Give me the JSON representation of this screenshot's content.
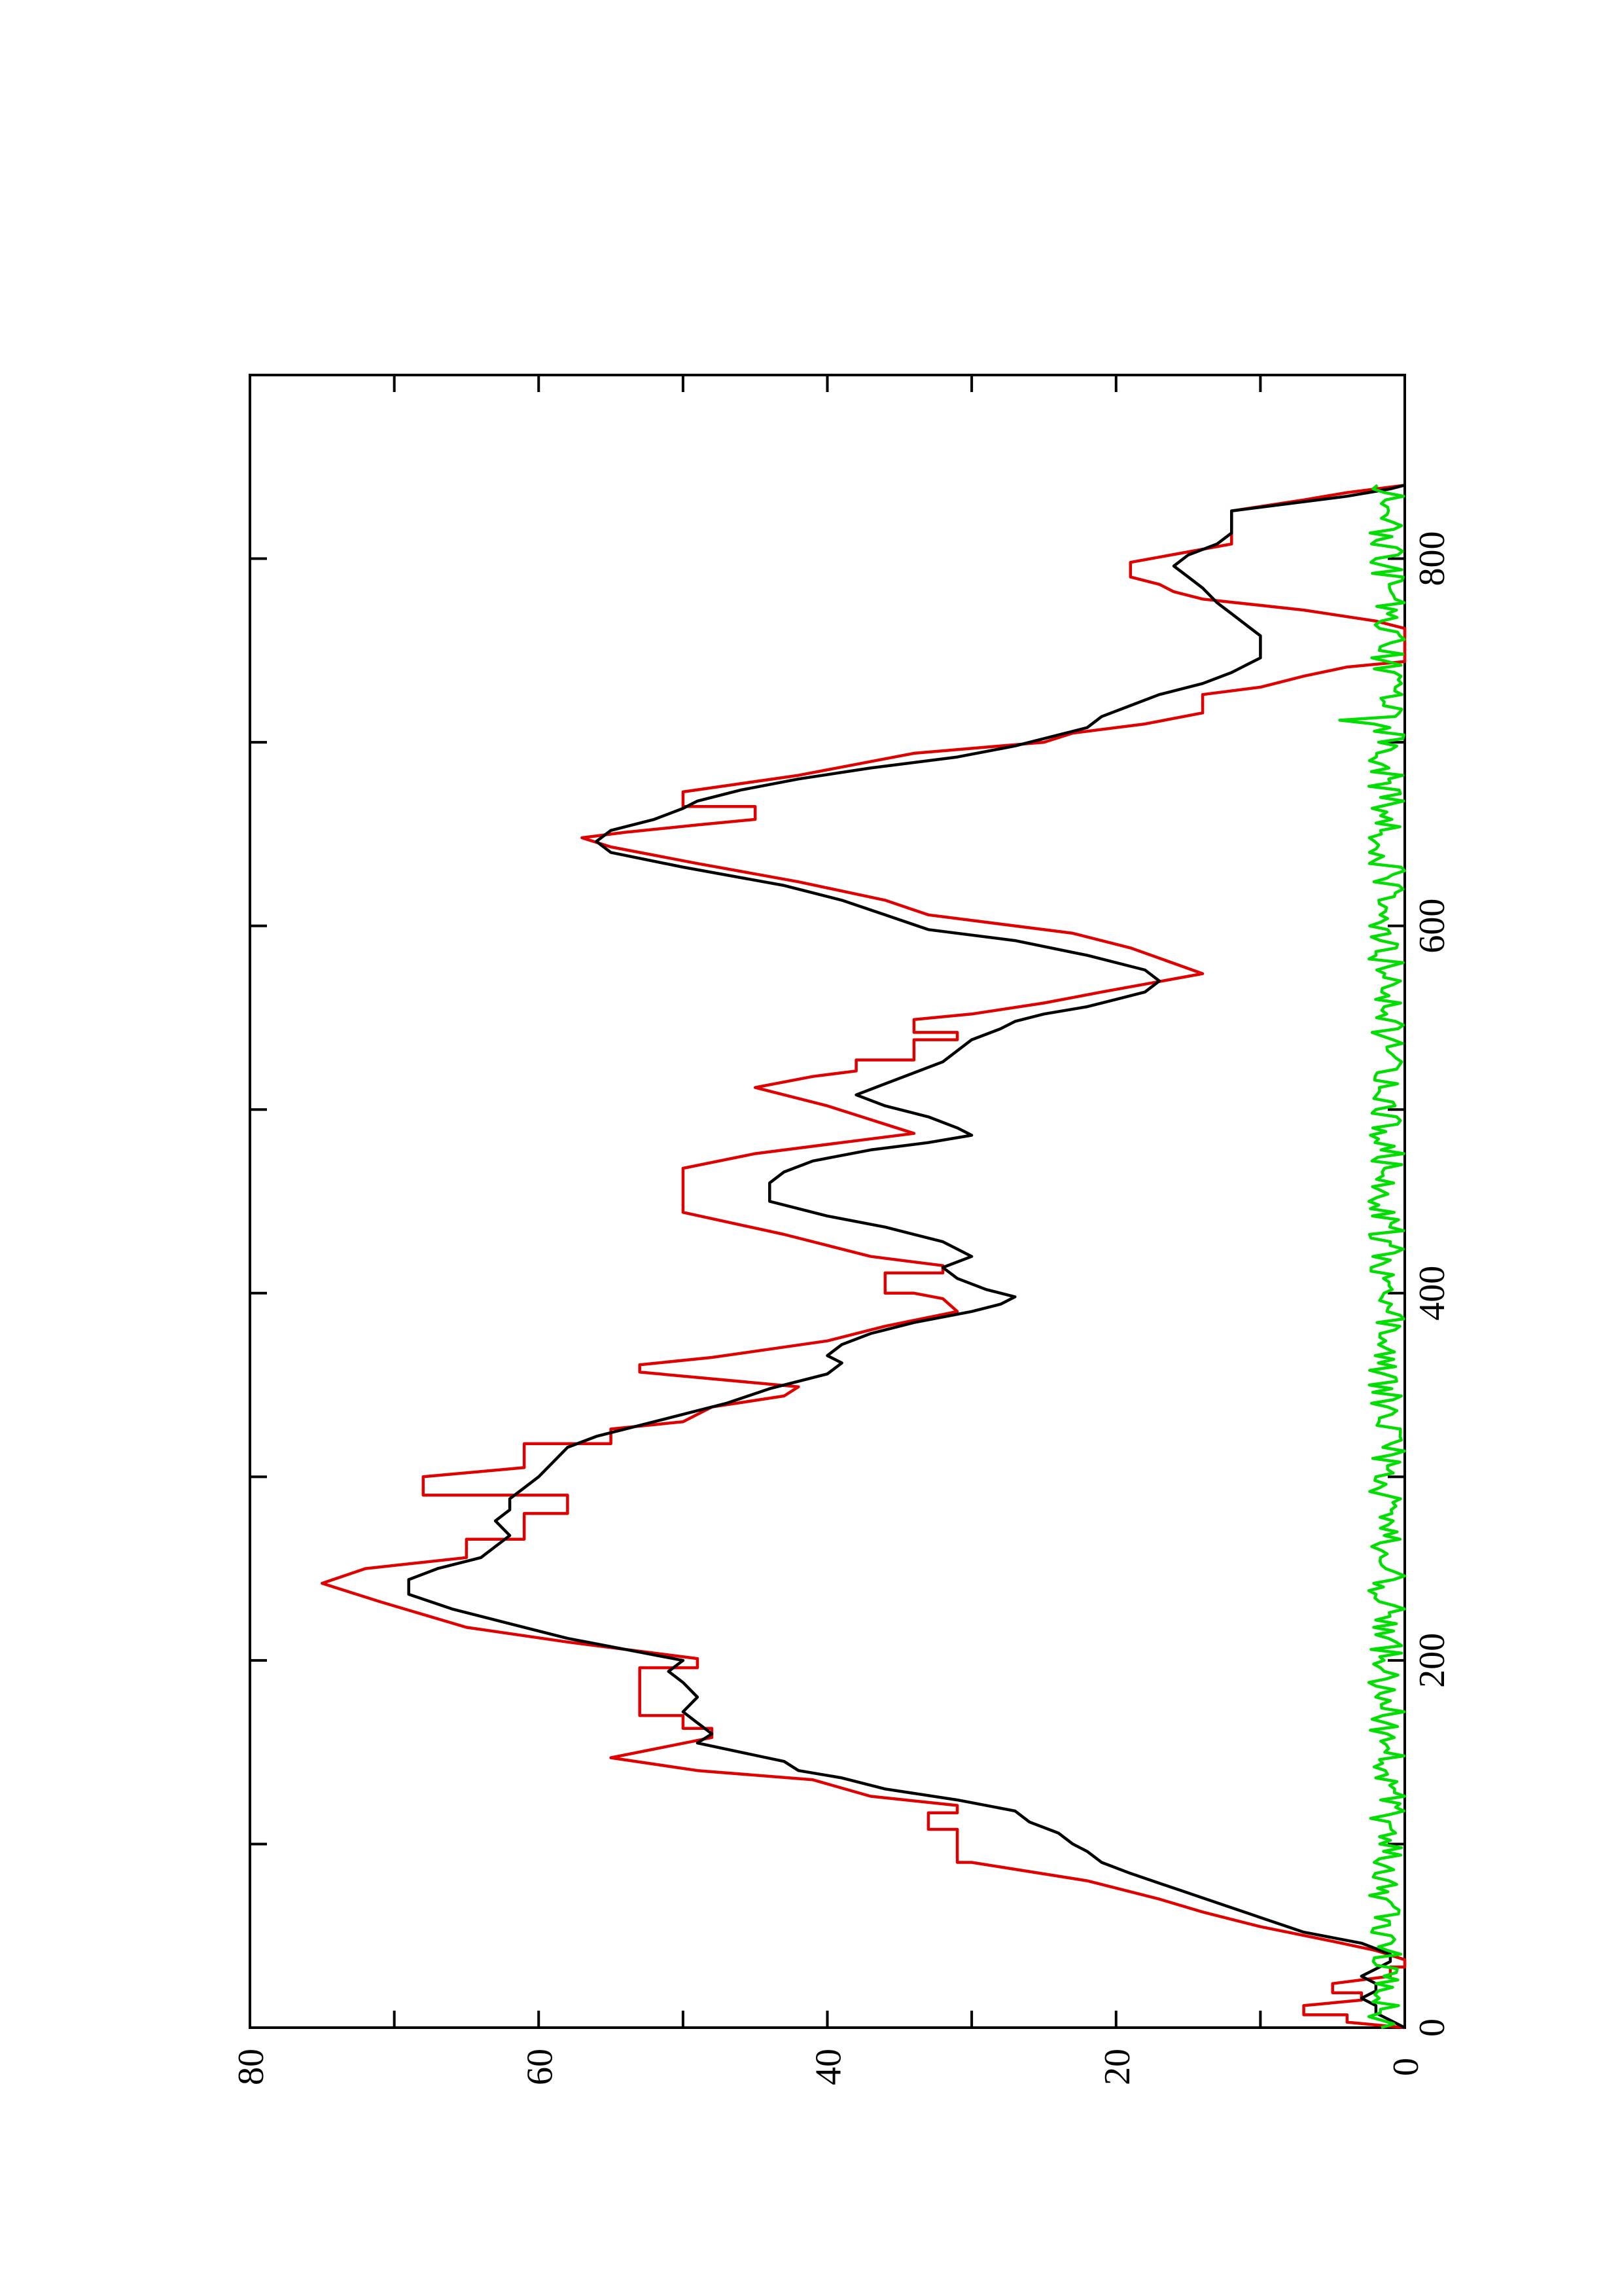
{
  "chart_data": {
    "type": "line",
    "title": "",
    "xlabel": "",
    "ylabel": "",
    "orientation": "rotated-90-counterclockwise",
    "xlim": [
      0,
      900
    ],
    "ylim": [
      0,
      80
    ],
    "x_ticks": [
      "0",
      "200",
      "400",
      "600",
      "800"
    ],
    "y_ticks": [
      "0",
      "20",
      "40",
      "60",
      "80"
    ],
    "grid": false,
    "legend": "none",
    "colors": {
      "black": "#000000",
      "red": "#e00000",
      "green": "#00dd00"
    },
    "series": [
      {
        "color": "#e00000",
        "step": true,
        "points": [
          [
            0,
            0
          ],
          [
            3,
            4
          ],
          [
            7,
            4
          ],
          [
            7,
            7
          ],
          [
            12,
            7
          ],
          [
            15,
            3
          ],
          [
            19,
            3
          ],
          [
            19,
            5
          ],
          [
            24,
            5
          ],
          [
            28,
            1
          ],
          [
            33,
            1
          ],
          [
            33,
            0
          ],
          [
            37,
            0
          ],
          [
            42,
            2
          ],
          [
            47,
            5
          ],
          [
            55,
            10
          ],
          [
            63,
            14
          ],
          [
            70,
            17
          ],
          [
            80,
            22
          ],
          [
            90,
            30
          ],
          [
            90,
            31
          ],
          [
            108,
            31
          ],
          [
            108,
            33
          ],
          [
            117,
            33
          ],
          [
            117,
            31
          ],
          [
            121,
            31
          ],
          [
            126,
            37
          ],
          [
            135,
            41
          ],
          [
            140,
            49
          ],
          [
            147,
            55
          ],
          [
            158,
            48
          ],
          [
            163,
            48
          ],
          [
            163,
            50
          ],
          [
            170,
            50
          ],
          [
            170,
            53
          ],
          [
            196,
            53
          ],
          [
            196,
            49
          ],
          [
            201,
            49
          ],
          [
            210,
            58
          ],
          [
            218,
            65
          ],
          [
            232,
            71
          ],
          [
            242,
            75
          ],
          [
            250,
            72
          ],
          [
            256,
            65
          ],
          [
            266,
            65
          ],
          [
            266,
            61
          ],
          [
            280,
            61
          ],
          [
            280,
            58
          ],
          [
            290,
            58
          ],
          [
            290,
            68
          ],
          [
            300,
            68
          ],
          [
            305,
            61
          ],
          [
            318,
            61
          ],
          [
            318,
            55
          ],
          [
            326,
            55
          ],
          [
            330,
            50
          ],
          [
            338,
            48
          ],
          [
            344,
            43
          ],
          [
            349,
            42
          ],
          [
            357,
            53
          ],
          [
            361,
            53
          ],
          [
            365,
            48
          ],
          [
            374,
            40
          ],
          [
            382,
            36
          ],
          [
            390,
            31
          ],
          [
            397,
            32
          ],
          [
            400,
            34
          ],
          [
            400,
            36
          ],
          [
            411,
            36
          ],
          [
            411,
            32
          ],
          [
            415,
            32
          ],
          [
            420,
            37
          ],
          [
            432,
            43
          ],
          [
            444,
            50
          ],
          [
            468,
            50
          ],
          [
            476,
            45
          ],
          [
            482,
            39
          ],
          [
            487,
            34
          ],
          [
            492,
            36
          ],
          [
            497,
            38
          ],
          [
            502,
            40
          ],
          [
            512,
            45
          ],
          [
            518,
            41
          ],
          [
            521,
            38
          ],
          [
            527,
            38
          ],
          [
            527,
            34
          ],
          [
            538,
            34
          ],
          [
            538,
            31
          ],
          [
            542,
            31
          ],
          [
            542,
            34
          ],
          [
            549,
            34
          ],
          [
            552,
            30
          ],
          [
            558,
            25
          ],
          [
            564,
            21
          ],
          [
            574,
            14
          ],
          [
            588,
            19
          ],
          [
            596,
            23
          ],
          [
            606,
            33
          ],
          [
            614,
            36
          ],
          [
            624,
            42
          ],
          [
            634,
            49
          ],
          [
            643,
            55
          ],
          [
            648,
            57
          ],
          [
            651,
            54
          ],
          [
            655,
            49
          ],
          [
            658,
            45
          ],
          [
            665,
            45
          ],
          [
            665,
            50
          ],
          [
            673,
            50
          ],
          [
            682,
            42
          ],
          [
            694,
            34
          ],
          [
            700,
            25
          ],
          [
            705,
            23
          ],
          [
            710,
            18
          ],
          [
            716,
            14
          ],
          [
            726,
            14
          ],
          [
            730,
            10
          ],
          [
            736,
            7
          ],
          [
            741,
            4
          ],
          [
            744,
            0
          ],
          [
            762,
            0
          ],
          [
            766,
            2
          ],
          [
            772,
            7
          ],
          [
            778,
            14
          ],
          [
            782,
            16
          ],
          [
            786,
            17
          ],
          [
            790,
            19
          ],
          [
            798,
            19
          ],
          [
            808,
            12
          ],
          [
            826,
            12
          ],
          [
            832,
            7
          ],
          [
            836,
            4
          ],
          [
            840,
            0
          ]
        ]
      },
      {
        "color": "#000000",
        "step": false,
        "points": [
          [
            0,
            0
          ],
          [
            4,
            1
          ],
          [
            8,
            2
          ],
          [
            12,
            2
          ],
          [
            16,
            3
          ],
          [
            20,
            2
          ],
          [
            24,
            2
          ],
          [
            28,
            3
          ],
          [
            32,
            2
          ],
          [
            36,
            1
          ],
          [
            40,
            1
          ],
          [
            46,
            3
          ],
          [
            52,
            7
          ],
          [
            60,
            10
          ],
          [
            68,
            13
          ],
          [
            76,
            16
          ],
          [
            84,
            19
          ],
          [
            90,
            21
          ],
          [
            96,
            22
          ],
          [
            100,
            23
          ],
          [
            106,
            24
          ],
          [
            112,
            26
          ],
          [
            118,
            27
          ],
          [
            124,
            31
          ],
          [
            130,
            36
          ],
          [
            136,
            39
          ],
          [
            140,
            42
          ],
          [
            145,
            43
          ],
          [
            150,
            46
          ],
          [
            155,
            49
          ],
          [
            160,
            48
          ],
          [
            166,
            49
          ],
          [
            172,
            50
          ],
          [
            180,
            49
          ],
          [
            188,
            50
          ],
          [
            194,
            51
          ],
          [
            200,
            50
          ],
          [
            206,
            54
          ],
          [
            212,
            58
          ],
          [
            220,
            62
          ],
          [
            228,
            66
          ],
          [
            236,
            69
          ],
          [
            244,
            69
          ],
          [
            250,
            67
          ],
          [
            256,
            64
          ],
          [
            262,
            63
          ],
          [
            268,
            62
          ],
          [
            276,
            63
          ],
          [
            282,
            62
          ],
          [
            288,
            62
          ],
          [
            294,
            61
          ],
          [
            300,
            60
          ],
          [
            308,
            59
          ],
          [
            316,
            58
          ],
          [
            322,
            56
          ],
          [
            328,
            53
          ],
          [
            334,
            50
          ],
          [
            340,
            47
          ],
          [
            348,
            44
          ],
          [
            356,
            40
          ],
          [
            362,
            39
          ],
          [
            366,
            40
          ],
          [
            372,
            39
          ],
          [
            378,
            37
          ],
          [
            384,
            34
          ],
          [
            390,
            30
          ],
          [
            394,
            28
          ],
          [
            398,
            27
          ],
          [
            402,
            29
          ],
          [
            408,
            31
          ],
          [
            414,
            32
          ],
          [
            420,
            30
          ],
          [
            428,
            32
          ],
          [
            436,
            36
          ],
          [
            442,
            40
          ],
          [
            446,
            42
          ],
          [
            450,
            44
          ],
          [
            460,
            44
          ],
          [
            466,
            43
          ],
          [
            472,
            41
          ],
          [
            478,
            37
          ],
          [
            482,
            33
          ],
          [
            486,
            30
          ],
          [
            490,
            31
          ],
          [
            496,
            33
          ],
          [
            502,
            36
          ],
          [
            508,
            38
          ],
          [
            514,
            36
          ],
          [
            520,
            34
          ],
          [
            526,
            32
          ],
          [
            532,
            31
          ],
          [
            538,
            30
          ],
          [
            544,
            28
          ],
          [
            548,
            27
          ],
          [
            552,
            25
          ],
          [
            556,
            22
          ],
          [
            560,
            20
          ],
          [
            564,
            18
          ],
          [
            570,
            17
          ],
          [
            576,
            18
          ],
          [
            584,
            22
          ],
          [
            592,
            27
          ],
          [
            598,
            33
          ],
          [
            606,
            36
          ],
          [
            614,
            39
          ],
          [
            622,
            43
          ],
          [
            632,
            50
          ],
          [
            640,
            55
          ],
          [
            646,
            56
          ],
          [
            652,
            55
          ],
          [
            658,
            52
          ],
          [
            664,
            50
          ],
          [
            668,
            49
          ],
          [
            674,
            46
          ],
          [
            680,
            42
          ],
          [
            686,
            37
          ],
          [
            692,
            31
          ],
          [
            698,
            27
          ],
          [
            704,
            24
          ],
          [
            708,
            22
          ],
          [
            714,
            21
          ],
          [
            720,
            19
          ],
          [
            726,
            17
          ],
          [
            732,
            14
          ],
          [
            738,
            12
          ],
          [
            742,
            11
          ],
          [
            746,
            10
          ],
          [
            752,
            10
          ],
          [
            758,
            10
          ],
          [
            764,
            11
          ],
          [
            770,
            12
          ],
          [
            776,
            13
          ],
          [
            784,
            14
          ],
          [
            790,
            15
          ],
          [
            796,
            16
          ],
          [
            802,
            15
          ],
          [
            808,
            13
          ],
          [
            814,
            12
          ],
          [
            820,
            12
          ],
          [
            826,
            12
          ],
          [
            830,
            8
          ],
          [
            834,
            4
          ],
          [
            838,
            1
          ],
          [
            840,
            0
          ]
        ]
      },
      {
        "color": "#00dd00",
        "step": false,
        "noise": true,
        "x_range": [
          0,
          840
        ],
        "y_range": [
          0,
          2.5
        ],
        "spike_at_x": 712,
        "spike_y": 4.5
      }
    ]
  }
}
